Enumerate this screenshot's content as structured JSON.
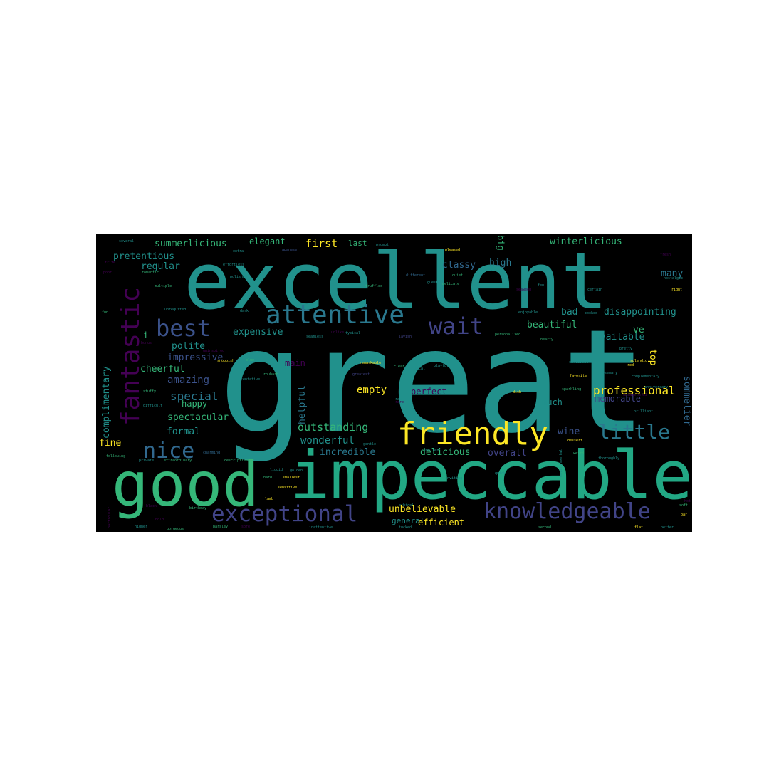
{
  "wordcloud": {
    "background_color": "#000000",
    "words": [
      {
        "text": "great",
        "weight": 1.0,
        "color": "#21918c"
      },
      {
        "text": "excellent",
        "weight": 0.64,
        "color": "#21918c"
      },
      {
        "text": "impeccable",
        "weight": 0.56,
        "color": "#22a884"
      },
      {
        "text": "good",
        "weight": 0.53,
        "color": "#35b779"
      },
      {
        "text": "friendly",
        "weight": 0.26,
        "color": "#fde725"
      },
      {
        "text": "attentive",
        "weight": 0.22,
        "color": "#2a788e"
      },
      {
        "text": "fantastic",
        "weight": 0.22,
        "color": "#440154"
      },
      {
        "text": "knowledgeable",
        "weight": 0.2,
        "color": "#414487"
      },
      {
        "text": "exceptional",
        "weight": 0.19,
        "color": "#414487"
      },
      {
        "text": "best",
        "weight": 0.19,
        "color": "#3b528b"
      },
      {
        "text": "wait",
        "weight": 0.19,
        "color": "#414487"
      },
      {
        "text": "nice",
        "weight": 0.17,
        "color": "#31688e"
      },
      {
        "text": "little",
        "weight": 0.16,
        "color": "#2a788e"
      },
      {
        "text": "professional",
        "weight": 0.1,
        "color": "#fde725"
      },
      {
        "text": "complimentary",
        "weight": 0.08,
        "color": "#21918c"
      },
      {
        "text": "sommelier",
        "weight": 0.08,
        "color": "#31688e"
      },
      {
        "text": "special",
        "weight": 0.09,
        "color": "#2a788e"
      },
      {
        "text": "wonderful",
        "weight": 0.08,
        "color": "#21918c"
      },
      {
        "text": "outstanding",
        "weight": 0.08,
        "color": "#35b779"
      },
      {
        "text": "helpful",
        "weight": 0.08,
        "color": "#2a788e"
      },
      {
        "text": "empty",
        "weight": 0.07,
        "color": "#fde725"
      },
      {
        "text": "summerlicious",
        "weight": 0.07,
        "color": "#35b779"
      },
      {
        "text": "winterlicious",
        "weight": 0.07,
        "color": "#35b779"
      },
      {
        "text": "pretentious",
        "weight": 0.07,
        "color": "#21918c"
      },
      {
        "text": "elegant",
        "weight": 0.07,
        "color": "#35b779"
      },
      {
        "text": "first",
        "weight": 0.08,
        "color": "#fde725"
      },
      {
        "text": "last",
        "weight": 0.06,
        "color": "#35b779"
      },
      {
        "text": "big",
        "weight": 0.06,
        "color": "#35b779"
      },
      {
        "text": "high",
        "weight": 0.06,
        "color": "#2a788e"
      },
      {
        "text": "classy",
        "weight": 0.06,
        "color": "#31688e"
      },
      {
        "text": "regular",
        "weight": 0.06,
        "color": "#21918c"
      },
      {
        "text": "amazing",
        "weight": 0.07,
        "color": "#3b528b"
      },
      {
        "text": "expensive",
        "weight": 0.07,
        "color": "#21918c"
      },
      {
        "text": "bad",
        "weight": 0.06,
        "color": "#21918c"
      },
      {
        "text": "beautiful",
        "weight": 0.06,
        "color": "#35b779"
      },
      {
        "text": "disappointing",
        "weight": 0.06,
        "color": "#21918c"
      },
      {
        "text": "available",
        "weight": 0.06,
        "color": "#21918c"
      },
      {
        "text": "many",
        "weight": 0.06,
        "color": "#2a788e"
      },
      {
        "text": "ve",
        "weight": 0.06,
        "color": "#35b779"
      },
      {
        "text": "top",
        "weight": 0.06,
        "color": "#fde725"
      },
      {
        "text": "polite",
        "weight": 0.06,
        "color": "#21918c"
      },
      {
        "text": "impressive",
        "weight": 0.06,
        "color": "#3b528b"
      },
      {
        "text": "cheerful",
        "weight": 0.06,
        "color": "#35b779"
      },
      {
        "text": "happy",
        "weight": 0.06,
        "color": "#35b779"
      },
      {
        "text": "spectacular",
        "weight": 0.06,
        "color": "#35b779"
      },
      {
        "text": "formal",
        "weight": 0.06,
        "color": "#21918c"
      },
      {
        "text": "fine",
        "weight": 0.06,
        "color": "#fde725"
      },
      {
        "text": "incredible",
        "weight": 0.06,
        "color": "#2a788e"
      },
      {
        "text": "delicious",
        "weight": 0.06,
        "color": "#35b779"
      },
      {
        "text": "overall",
        "weight": 0.06,
        "color": "#414487"
      },
      {
        "text": "wine",
        "weight": 0.06,
        "color": "#3b528b"
      },
      {
        "text": "unbelievable",
        "weight": 0.06,
        "color": "#fde725"
      },
      {
        "text": "general",
        "weight": 0.05,
        "color": "#21918c"
      },
      {
        "text": "efficient",
        "weight": 0.06,
        "color": "#fde725"
      },
      {
        "text": "main",
        "weight": 0.05,
        "color": "#440154"
      },
      {
        "text": "perfect",
        "weight": 0.05,
        "color": "#440154"
      },
      {
        "text": "much",
        "weight": 0.05,
        "color": "#21918c"
      },
      {
        "text": "memorable",
        "weight": 0.05,
        "color": "#414487"
      },
      {
        "text": "i",
        "weight": 0.05,
        "color": "#35b779"
      },
      {
        "text": "several",
        "weight": 0.03,
        "color": "#21918c"
      },
      {
        "text": "japanese",
        "weight": 0.03,
        "color": "#3b528b"
      },
      {
        "text": "prompt",
        "weight": 0.03,
        "color": "#21918c"
      },
      {
        "text": "pleased",
        "weight": 0.03,
        "color": "#fde725"
      },
      {
        "text": "romantic",
        "weight": 0.03,
        "color": "#35b779"
      },
      {
        "text": "extra",
        "weight": 0.03,
        "color": "#21918c"
      },
      {
        "text": "multiple",
        "weight": 0.03,
        "color": "#35b779"
      },
      {
        "text": "truffled",
        "weight": 0.03,
        "color": "#35b779"
      },
      {
        "text": "different",
        "weight": 0.03,
        "color": "#31688e"
      },
      {
        "text": "quiet",
        "weight": 0.03,
        "color": "#35b779"
      },
      {
        "text": "delicate",
        "weight": 0.03,
        "color": "#35b779"
      },
      {
        "text": "guest",
        "weight": 0.03,
        "color": "#21918c"
      },
      {
        "text": "fancy",
        "weight": 0.03,
        "color": "#21918c"
      },
      {
        "text": "few",
        "weight": 0.03,
        "color": "#21918c"
      },
      {
        "text": "certain",
        "weight": 0.03,
        "color": "#21918c"
      },
      {
        "text": "right",
        "weight": 0.03,
        "color": "#fde725"
      },
      {
        "text": "unrequited",
        "weight": 0.03,
        "color": "#21918c"
      },
      {
        "text": "fun",
        "weight": 0.03,
        "color": "#35b779"
      },
      {
        "text": "dark",
        "weight": 0.03,
        "color": "#21918c"
      },
      {
        "text": "enjoyable",
        "weight": 0.03,
        "color": "#21918c"
      },
      {
        "text": "cooked",
        "weight": 0.03,
        "color": "#21918c"
      },
      {
        "text": "seamless",
        "weight": 0.03,
        "color": "#21918c"
      },
      {
        "text": "typical",
        "weight": 0.03,
        "color": "#21918c"
      },
      {
        "text": "personalized",
        "weight": 0.03,
        "color": "#35b779"
      },
      {
        "text": "hearty",
        "weight": 0.03,
        "color": "#35b779"
      },
      {
        "text": "splendid",
        "weight": 0.03,
        "color": "#fde725"
      },
      {
        "text": "snobbish",
        "weight": 0.03,
        "color": "#fde725"
      },
      {
        "text": "remarkable",
        "weight": 0.03,
        "color": "#fde725"
      },
      {
        "text": "playful",
        "weight": 0.03,
        "color": "#21918c"
      },
      {
        "text": "clear",
        "weight": 0.03,
        "color": "#35b779"
      },
      {
        "text": "superb",
        "weight": 0.03,
        "color": "#21918c"
      },
      {
        "text": "rosemary",
        "weight": 0.03,
        "color": "#21918c"
      },
      {
        "text": "complementary",
        "weight": 0.03,
        "color": "#21918c"
      },
      {
        "text": "sparkling",
        "weight": 0.03,
        "color": "#35b779"
      },
      {
        "text": "stuffy",
        "weight": 0.03,
        "color": "#35b779"
      },
      {
        "text": "difficult",
        "weight": 0.03,
        "color": "#21918c"
      },
      {
        "text": "dish",
        "weight": 0.03,
        "color": "#fde725"
      },
      {
        "text": "raw",
        "weight": 0.03,
        "color": "#21918c"
      },
      {
        "text": "brilliant",
        "weight": 0.03,
        "color": "#21918c"
      },
      {
        "text": "dessert",
        "weight": 0.03,
        "color": "#fde725"
      },
      {
        "text": "private",
        "weight": 0.03,
        "color": "#21918c"
      },
      {
        "text": "extraordinary",
        "weight": 0.03,
        "color": "#35b779"
      },
      {
        "text": "descriptive",
        "weight": 0.03,
        "color": "#35b779"
      },
      {
        "text": "charming",
        "weight": 0.03,
        "color": "#31688e"
      },
      {
        "text": "smallest",
        "weight": 0.03,
        "color": "#fde725"
      },
      {
        "text": "golden",
        "weight": 0.03,
        "color": "#21918c"
      },
      {
        "text": "inviting",
        "weight": 0.03,
        "color": "#21918c"
      },
      {
        "text": "quick",
        "weight": 0.03,
        "color": "#21918c"
      },
      {
        "text": "weird",
        "weight": 0.03,
        "color": "#35b779"
      },
      {
        "text": "thoroughly",
        "weight": 0.03,
        "color": "#21918c"
      },
      {
        "text": "sensitive",
        "weight": 0.03,
        "color": "#fde725"
      },
      {
        "text": "birthday",
        "weight": 0.03,
        "color": "#35b779"
      },
      {
        "text": "gorgeous",
        "weight": 0.03,
        "color": "#35b779"
      },
      {
        "text": "parsley",
        "weight": 0.03,
        "color": "#35b779"
      },
      {
        "text": "higher",
        "weight": 0.03,
        "color": "#21918c"
      },
      {
        "text": "inattentive",
        "weight": 0.03,
        "color": "#21918c"
      },
      {
        "text": "tucked",
        "weight": 0.03,
        "color": "#21918c"
      },
      {
        "text": "second",
        "weight": 0.03,
        "color": "#35b779"
      },
      {
        "text": "better",
        "weight": 0.03,
        "color": "#21918c"
      },
      {
        "text": "flat",
        "weight": 0.03,
        "color": "#fde725"
      },
      {
        "text": "lamb",
        "weight": 0.03,
        "color": "#fde725"
      },
      {
        "text": "liquid",
        "weight": 0.03,
        "color": "#21918c"
      },
      {
        "text": "bar",
        "weight": 0.03,
        "color": "#fde725"
      },
      {
        "text": "soft",
        "weight": 0.03,
        "color": "#35b779"
      },
      {
        "text": "red",
        "weight": 0.03,
        "color": "#fde725"
      },
      {
        "text": "anniversary",
        "weight": 0.03,
        "color": "#21918c"
      },
      {
        "text": "following",
        "weight": 0.03,
        "color": "#35b779"
      },
      {
        "text": "ethical",
        "weight": 0.03,
        "color": "#21918c"
      },
      {
        "text": "smaller",
        "weight": 0.03,
        "color": "#21918c"
      },
      {
        "text": "gentle",
        "weight": 0.03,
        "color": "#21918c"
      },
      {
        "text": "favorite",
        "weight": 0.03,
        "color": "#fde725"
      },
      {
        "text": "nostalgic",
        "weight": 0.03,
        "color": "#21918c"
      },
      {
        "text": "pretty",
        "weight": 0.03,
        "color": "#21918c"
      },
      {
        "text": "environmental",
        "weight": 0.03,
        "color": "#21918c"
      },
      {
        "text": "hard",
        "weight": 0.03,
        "color": "#35b779"
      },
      {
        "text": "sarcastic",
        "weight": 0.03,
        "color": "#21918c"
      },
      {
        "text": "rhubarb",
        "weight": 0.03,
        "color": "#35b779"
      },
      {
        "text": "tentative",
        "weight": 0.03,
        "color": "#21918c"
      },
      {
        "text": "polished",
        "weight": 0.03,
        "color": "#21918c"
      },
      {
        "text": "effortless",
        "weight": 0.03,
        "color": "#21918c"
      },
      {
        "text": "local",
        "weight": 0.03,
        "color": "#21918c"
      },
      {
        "text": "blue",
        "weight": 0.03,
        "color": "#35b779"
      },
      {
        "text": "lavish",
        "weight": 0.03,
        "color": "#414487"
      },
      {
        "text": "greatest",
        "weight": 0.03,
        "color": "#414487"
      },
      {
        "text": "unlike",
        "weight": 0.03,
        "color": "#440154"
      },
      {
        "text": "hot",
        "weight": 0.03,
        "color": "#440154"
      },
      {
        "text": "particular",
        "weight": 0.03,
        "color": "#440154"
      },
      {
        "text": "bold",
        "weight": 0.03,
        "color": "#440154"
      },
      {
        "text": "black",
        "weight": 0.03,
        "color": "#440154"
      },
      {
        "text": "poor",
        "weight": 0.03,
        "color": "#440154"
      },
      {
        "text": "bonus",
        "weight": 0.03,
        "color": "#440154"
      },
      {
        "text": "unsweetened",
        "weight": 0.03,
        "color": "#440154"
      },
      {
        "text": "uninspired",
        "weight": 0.03,
        "color": "#440154"
      },
      {
        "text": "trite",
        "weight": 0.03,
        "color": "#440154"
      },
      {
        "text": "sore",
        "weight": 0.03,
        "color": "#440154"
      },
      {
        "text": "rare",
        "weight": 0.03,
        "color": "#440154"
      },
      {
        "text": "seaweed",
        "weight": 0.03,
        "color": "#440154"
      },
      {
        "text": "fresh",
        "weight": 0.03,
        "color": "#440154"
      }
    ]
  }
}
